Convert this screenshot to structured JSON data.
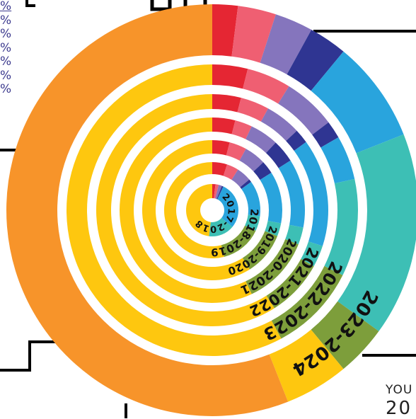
{
  "chart_data": {
    "type": "sunburst",
    "title": "",
    "rings": [
      {
        "label": "2017-2018",
        "values": [
          2,
          2,
          2,
          1,
          29,
          16,
          0,
          0,
          48
        ]
      },
      {
        "label": "2018-2019",
        "values": [
          5,
          4,
          5,
          1,
          12,
          5,
          0,
          14,
          54
        ]
      },
      {
        "label": "2019-2020",
        "values": [
          4,
          4,
          5,
          3,
          12,
          3,
          1,
          9,
          59
        ]
      },
      {
        "label": "2020-2021",
        "values": [
          4,
          3,
          5,
          4,
          12,
          3,
          1,
          11,
          57
        ]
      },
      {
        "label": "2021-2022",
        "values": [
          4,
          4,
          5,
          2,
          15,
          3,
          1,
          7,
          59
        ]
      },
      {
        "label": "2022-2023",
        "values": [
          4,
          5,
          6,
          2,
          5,
          11,
          2,
          8,
          59
        ]
      },
      {
        "label": "2023-2024",
        "values": [
          2,
          3,
          3,
          3,
          8,
          16,
          4,
          5,
          56
        ]
      }
    ],
    "segment_colors": [
      "#e52633",
      "#ef5f72",
      "#8575bd",
      "#2f3592",
      "#29a4dd",
      "#3dbfb5",
      "#7d9e3b",
      "#7d9e3b",
      "#fec70f"
    ],
    "outer_ring_colors": [
      "#e52633",
      "#ef5f72",
      "#8575bd",
      "#2f3592",
      "#29a4dd",
      "#3dbfb5",
      "#7d9e3b",
      "#fec70f",
      "#f7942a"
    ],
    "ring_label_color": "#111111",
    "legend_percentages": [
      "%",
      "%",
      "%",
      "%",
      "%",
      "%",
      "%"
    ]
  },
  "corner_text": {
    "line1": "YOU",
    "line2": "20"
  }
}
